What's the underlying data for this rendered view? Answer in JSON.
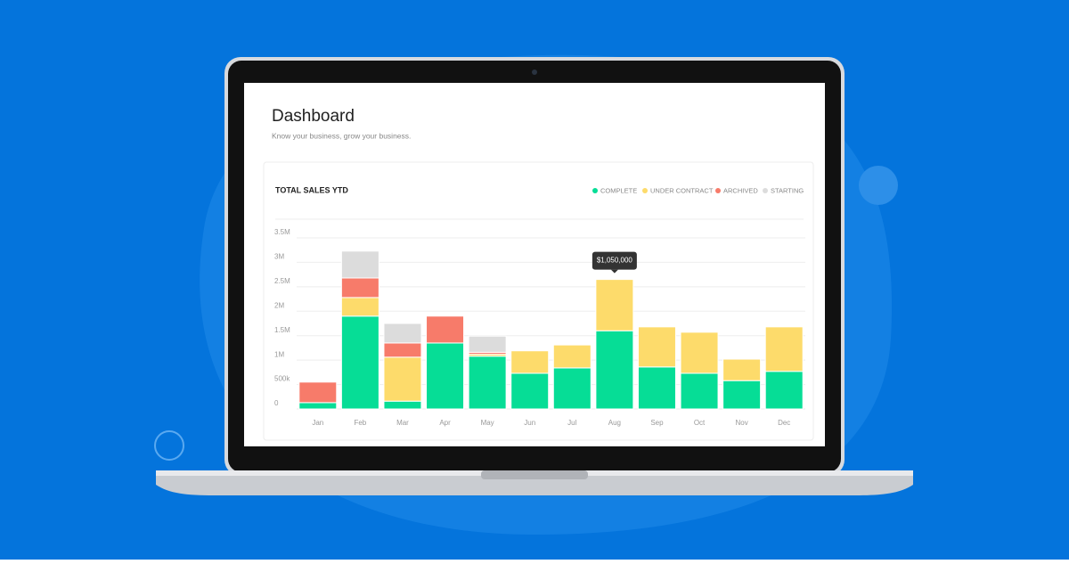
{
  "header": {
    "title": "Dashboard",
    "subtitle": "Know your business, grow your business."
  },
  "chart_data": {
    "type": "stacked-bar",
    "title": "TOTAL SALES YTD",
    "categories": [
      "Jan",
      "Feb",
      "Mar",
      "Apr",
      "May",
      "Jun",
      "Jul",
      "Aug",
      "Sep",
      "Oct",
      "Nov",
      "Dec"
    ],
    "series": [
      {
        "name": "COMPLETE",
        "color": "#06dd96",
        "values": [
          130000,
          1900000,
          160000,
          1350000,
          1080000,
          730000,
          840000,
          1600000,
          860000,
          730000,
          580000,
          770000
        ]
      },
      {
        "name": "UNDER CONTRACT",
        "color": "#fddb6b",
        "values": [
          0,
          380000,
          900000,
          0,
          40000,
          460000,
          470000,
          1050000,
          820000,
          840000,
          440000,
          910000
        ],
        "value_labels": [
          null,
          null,
          null,
          null,
          null,
          null,
          null,
          "$1,050,000",
          null,
          null,
          null,
          null
        ]
      },
      {
        "name": "ARCHIVED",
        "color": "#f77b6a",
        "values": [
          420000,
          400000,
          290000,
          550000,
          40000,
          0,
          0,
          0,
          0,
          0,
          0,
          0
        ]
      },
      {
        "name": "STARTING",
        "color": "#dcdcdc",
        "values": [
          0,
          550000,
          400000,
          0,
          330000,
          0,
          0,
          0,
          0,
          0,
          0,
          0
        ]
      }
    ],
    "ylim": [
      0,
      3500000
    ],
    "yticks": [
      0,
      {
        "value": 500000,
        "label": "500k"
      },
      {
        "value": 1000000,
        "label": "1M"
      },
      {
        "value": 1500000,
        "label": "1.5M"
      },
      {
        "value": 2000000,
        "label": "2M"
      },
      {
        "value": 2500000,
        "label": "2.5M"
      },
      {
        "value": 3000000,
        "label": "3M"
      },
      {
        "value": 3500000,
        "label": "3.5M"
      }
    ],
    "grid": true,
    "legend": "top-right"
  }
}
